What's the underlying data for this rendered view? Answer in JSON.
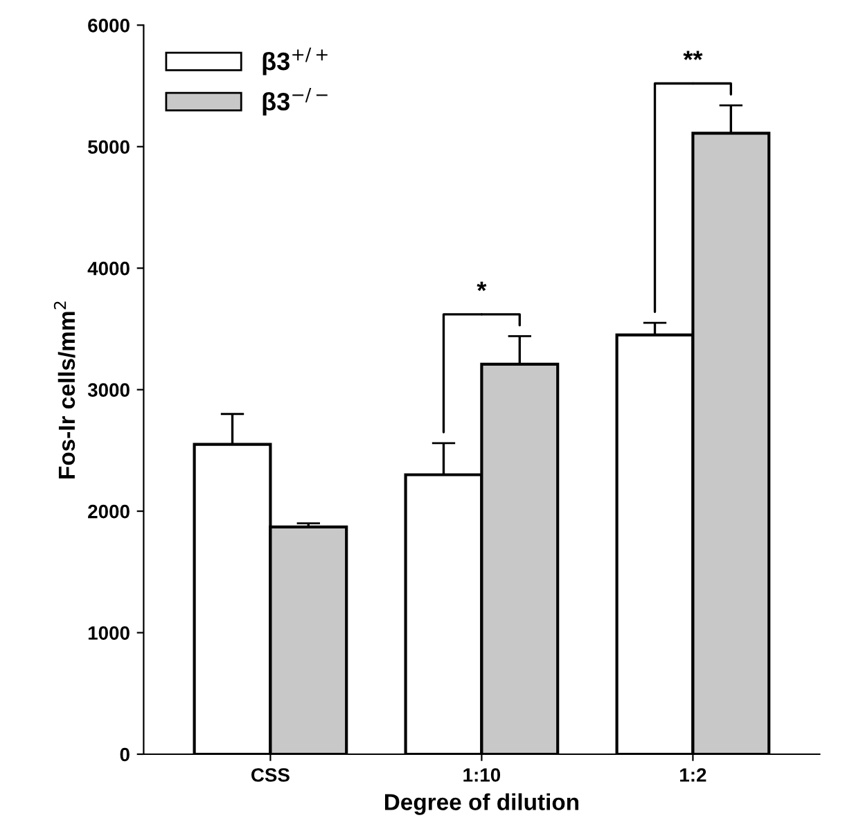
{
  "chart_data": {
    "type": "bar",
    "xlabel": "Degree of dilution",
    "ylabel": "Fos-Ir cells/mm$^{2}$",
    "categories": [
      "CSS",
      "1:10",
      "1:2"
    ],
    "series": [
      {
        "name": "β3$^{+/+}$",
        "color": "#ffffff",
        "values": [
          2550,
          2300,
          3450
        ],
        "errors": [
          250,
          260,
          100
        ]
      },
      {
        "name": "β3$^{−/−}$",
        "color": "#c8c8c8",
        "values": [
          1870,
          3210,
          5110
        ],
        "errors": [
          30,
          230,
          230
        ]
      }
    ],
    "annotations": [
      "*",
      "**"
    ],
    "ylim": [
      0,
      6000
    ],
    "yticks": [
      0,
      1000,
      2000,
      3000,
      4000,
      5000,
      6000
    ],
    "grid": false,
    "legend": "top left"
  }
}
